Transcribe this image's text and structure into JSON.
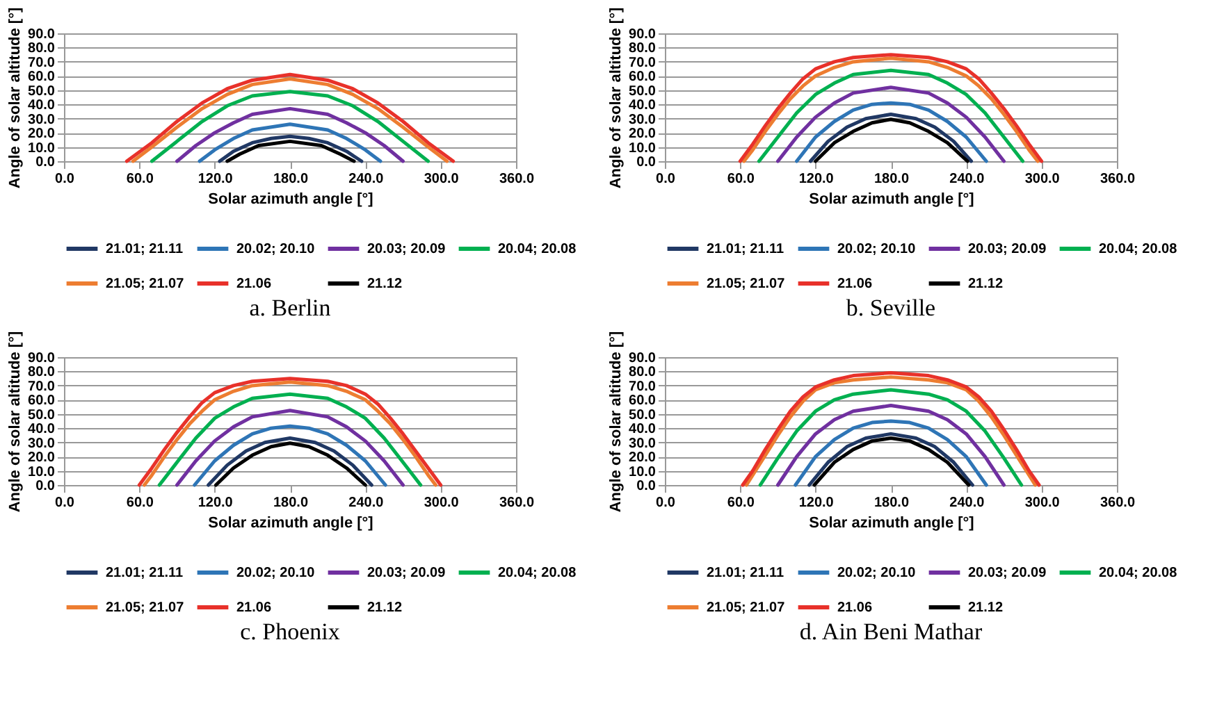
{
  "chart_data": [
    {
      "type": "line",
      "title": "a. Berlin",
      "xlabel": "Solar azimuth angle [°]",
      "ylabel": "Angle of solar altitude [°]",
      "xlim": [
        0,
        360
      ],
      "ylim": [
        0,
        90
      ],
      "xticks": [
        {
          "value": 0,
          "label": "0.0"
        },
        {
          "value": 60,
          "label": "60.0"
        },
        {
          "value": 120,
          "label": "120.0"
        },
        {
          "value": 180,
          "label": "180.0"
        },
        {
          "value": 240,
          "label": "240.0"
        },
        {
          "value": 300,
          "label": "300.0"
        },
        {
          "value": 360,
          "label": "360.0"
        }
      ],
      "yticks": [
        {
          "value": 0,
          "label": "0.0"
        },
        {
          "value": 10,
          "label": "10.0"
        },
        {
          "value": 20,
          "label": "20.0"
        },
        {
          "value": 30,
          "label": "30.0"
        },
        {
          "value": 40,
          "label": "40.0"
        },
        {
          "value": 50,
          "label": "50.0"
        },
        {
          "value": 60,
          "label": "60.0"
        },
        {
          "value": 70,
          "label": "70.0"
        },
        {
          "value": 80,
          "label": "80.0"
        },
        {
          "value": 90,
          "label": "90.0"
        }
      ],
      "grid": "y",
      "legend": "bottom",
      "series": [
        {
          "name": "21.01; 21.11",
          "color": "#203864",
          "x": [
            124,
            135,
            150,
            165,
            180,
            195,
            210,
            225,
            237
          ],
          "values": [
            0,
            7,
            13,
            16,
            17.5,
            16,
            13,
            7,
            0
          ]
        },
        {
          "name": "20.02; 20.10",
          "color": "#2e75b6",
          "x": [
            108,
            120,
            135,
            150,
            180,
            210,
            225,
            240,
            252
          ],
          "values": [
            0,
            8,
            16,
            22,
            26,
            22,
            16,
            8,
            0
          ]
        },
        {
          "name": "20.03; 20.09",
          "color": "#7030a0",
          "x": [
            90,
            105,
            120,
            135,
            150,
            180,
            210,
            225,
            240,
            255,
            270
          ],
          "values": [
            0,
            11,
            20,
            27,
            33,
            37,
            33,
            27,
            20,
            11,
            0
          ]
        },
        {
          "name": "20.04; 20.08",
          "color": "#00b050",
          "x": [
            70,
            90,
            110,
            130,
            150,
            180,
            210,
            230,
            250,
            270,
            290
          ],
          "values": [
            0,
            14,
            28,
            39,
            46,
            49,
            46,
            39,
            28,
            14,
            0
          ]
        },
        {
          "name": "21.05; 21.07",
          "color": "#ed7d31",
          "x": [
            55,
            70,
            90,
            110,
            130,
            150,
            180,
            210,
            230,
            250,
            270,
            290,
            305
          ],
          "values": [
            0,
            10,
            24,
            37,
            47,
            54,
            58,
            54,
            47,
            37,
            24,
            10,
            0
          ]
        },
        {
          "name": "21.06",
          "color": "#e8312a",
          "x": [
            50,
            70,
            90,
            110,
            130,
            150,
            180,
            210,
            230,
            250,
            270,
            290,
            310
          ],
          "values": [
            0,
            13,
            28,
            41,
            51,
            57,
            61,
            57,
            51,
            41,
            28,
            13,
            0
          ]
        },
        {
          "name": "21.12",
          "color": "#000000",
          "x": [
            130,
            140,
            155,
            180,
            205,
            220,
            231
          ],
          "values": [
            0,
            5,
            11,
            14,
            11,
            5,
            0
          ]
        }
      ]
    },
    {
      "type": "line",
      "title": "b. Seville",
      "xlabel": "Solar azimuth angle [°]",
      "ylabel": "Angle of solar altitude [°]",
      "xlim": [
        0,
        360
      ],
      "ylim": [
        0,
        90
      ],
      "xticks": [
        {
          "value": 0,
          "label": "0.0"
        },
        {
          "value": 60,
          "label": "60.0"
        },
        {
          "value": 120,
          "label": "120.0"
        },
        {
          "value": 180,
          "label": "180.0"
        },
        {
          "value": 240,
          "label": "240.0"
        },
        {
          "value": 300,
          "label": "300.0"
        },
        {
          "value": 360,
          "label": "360.0"
        }
      ],
      "yticks": [
        {
          "value": 0,
          "label": "0.0"
        },
        {
          "value": 10,
          "label": "10.0"
        },
        {
          "value": 20,
          "label": "20.0"
        },
        {
          "value": 30,
          "label": "30.0"
        },
        {
          "value": 40,
          "label": "40.0"
        },
        {
          "value": 50,
          "label": "50.0"
        },
        {
          "value": 60,
          "label": "60.0"
        },
        {
          "value": 70,
          "label": "70.0"
        },
        {
          "value": 80,
          "label": "80.0"
        },
        {
          "value": 90,
          "label": "90.0"
        }
      ],
      "grid": "y",
      "legend": "bottom",
      "series": [
        {
          "name": "21.01; 21.11",
          "color": "#203864",
          "x": [
            116,
            130,
            145,
            160,
            180,
            200,
            215,
            230,
            244
          ],
          "values": [
            0,
            14,
            24,
            30,
            33,
            30,
            24,
            14,
            0
          ]
        },
        {
          "name": "20.02; 20.10",
          "color": "#2e75b6",
          "x": [
            105,
            120,
            135,
            150,
            165,
            180,
            195,
            210,
            225,
            240,
            256
          ],
          "values": [
            0,
            17,
            28,
            36,
            40,
            41,
            40,
            36,
            28,
            17,
            0
          ]
        },
        {
          "name": "20.03; 20.09",
          "color": "#7030a0",
          "x": [
            90,
            105,
            120,
            135,
            150,
            180,
            210,
            225,
            240,
            255,
            270
          ],
          "values": [
            0,
            17,
            31,
            41,
            48,
            52,
            48,
            41,
            31,
            17,
            0
          ]
        },
        {
          "name": "20.04; 20.08",
          "color": "#00b050",
          "x": [
            75,
            90,
            105,
            120,
            135,
            150,
            180,
            210,
            225,
            240,
            255,
            270,
            285
          ],
          "values": [
            0,
            17,
            34,
            47,
            55,
            61,
            64,
            61,
            55,
            47,
            34,
            17,
            0
          ]
        },
        {
          "name": "21.05; 21.07",
          "color": "#ed7d31",
          "x": [
            63,
            70,
            80,
            90,
            100,
            110,
            120,
            135,
            150,
            180,
            210,
            225,
            240,
            250,
            260,
            270,
            280,
            290,
            297
          ],
          "values": [
            0,
            8,
            21,
            33,
            44,
            53,
            60,
            66,
            70,
            72.5,
            70,
            66,
            60,
            53,
            44,
            33,
            21,
            8,
            0
          ]
        },
        {
          "name": "21.06",
          "color": "#e8312a",
          "x": [
            60,
            70,
            80,
            90,
            100,
            110,
            120,
            135,
            150,
            180,
            210,
            225,
            240,
            250,
            260,
            270,
            280,
            290,
            300
          ],
          "values": [
            0,
            12,
            25,
            37,
            48,
            58,
            65,
            70,
            73,
            75,
            73,
            70,
            65,
            58,
            48,
            37,
            25,
            12,
            0
          ]
        },
        {
          "name": "21.12",
          "color": "#000000",
          "x": [
            120,
            135,
            150,
            165,
            180,
            195,
            210,
            225,
            241
          ],
          "values": [
            0,
            13,
            21,
            27,
            29.5,
            27,
            21,
            13,
            0
          ]
        }
      ]
    },
    {
      "type": "line",
      "title": "c. Phoenix",
      "xlabel": "Solar azimuth angle [°]",
      "ylabel": "Angle of solar altitude [°]",
      "xlim": [
        0,
        360
      ],
      "ylim": [
        0,
        90
      ],
      "xticks": [
        {
          "value": 0,
          "label": "0.0"
        },
        {
          "value": 60,
          "label": "60.0"
        },
        {
          "value": 120,
          "label": "120.0"
        },
        {
          "value": 180,
          "label": "180.0"
        },
        {
          "value": 240,
          "label": "240.0"
        },
        {
          "value": 300,
          "label": "300.0"
        },
        {
          "value": 360,
          "label": "360.0"
        }
      ],
      "yticks": [
        {
          "value": 0,
          "label": "0.0"
        },
        {
          "value": 10,
          "label": "10.0"
        },
        {
          "value": 20,
          "label": "20.0"
        },
        {
          "value": 30,
          "label": "30.0"
        },
        {
          "value": 40,
          "label": "40.0"
        },
        {
          "value": 50,
          "label": "50.0"
        },
        {
          "value": 60,
          "label": "60.0"
        },
        {
          "value": 70,
          "label": "70.0"
        },
        {
          "value": 80,
          "label": "80.0"
        },
        {
          "value": 90,
          "label": "90.0"
        }
      ],
      "grid": "y",
      "legend": "bottom",
      "series": [
        {
          "name": "21.01; 21.11",
          "color": "#203864",
          "x": [
            115,
            130,
            145,
            160,
            180,
            200,
            215,
            230,
            245
          ],
          "values": [
            0,
            14,
            24,
            30,
            33,
            30,
            24,
            14,
            0
          ]
        },
        {
          "name": "20.02; 20.10",
          "color": "#2e75b6",
          "x": [
            104,
            120,
            135,
            150,
            165,
            180,
            195,
            210,
            225,
            240,
            256
          ],
          "values": [
            0,
            17,
            28,
            36,
            40,
            41.5,
            40,
            36,
            28,
            17,
            0
          ]
        },
        {
          "name": "20.03; 20.09",
          "color": "#7030a0",
          "x": [
            90,
            105,
            120,
            135,
            150,
            180,
            210,
            225,
            240,
            255,
            270
          ],
          "values": [
            0,
            17,
            31,
            41,
            48,
            52.5,
            48,
            41,
            31,
            17,
            0
          ]
        },
        {
          "name": "20.04; 20.08",
          "color": "#00b050",
          "x": [
            76,
            90,
            105,
            120,
            135,
            150,
            180,
            210,
            225,
            240,
            255,
            270,
            284
          ],
          "values": [
            0,
            16,
            33,
            47,
            55,
            61,
            64,
            61,
            55,
            47,
            33,
            16,
            0
          ]
        },
        {
          "name": "21.05; 21.07",
          "color": "#ed7d31",
          "x": [
            64,
            70,
            80,
            90,
            100,
            110,
            120,
            135,
            150,
            180,
            210,
            225,
            240,
            250,
            260,
            270,
            280,
            290,
            296
          ],
          "values": [
            0,
            7,
            20,
            32,
            43,
            52,
            60,
            66,
            70,
            72.5,
            70,
            66,
            60,
            52,
            43,
            32,
            20,
            7,
            0
          ]
        },
        {
          "name": "21.06",
          "color": "#e8312a",
          "x": [
            60,
            70,
            80,
            90,
            100,
            110,
            120,
            135,
            150,
            180,
            210,
            225,
            240,
            250,
            260,
            270,
            280,
            290,
            300
          ],
          "values": [
            0,
            12,
            25,
            37,
            48,
            58,
            65,
            70,
            73,
            75,
            73,
            70,
            64,
            57,
            47,
            36,
            24,
            12,
            0
          ]
        },
        {
          "name": "21.12",
          "color": "#000000",
          "x": [
            121,
            135,
            150,
            165,
            180,
            195,
            210,
            225,
            240
          ],
          "values": [
            0,
            12,
            21,
            27,
            29.5,
            27,
            21,
            12,
            0
          ]
        }
      ]
    },
    {
      "type": "line",
      "title": "d. Ain Beni Mathar",
      "xlabel": "Solar azimuth angle [°]",
      "ylabel": "Angle of solar altitude [°]",
      "xlim": [
        0,
        360
      ],
      "ylim": [
        0,
        90
      ],
      "xticks": [
        {
          "value": 0,
          "label": "0.0"
        },
        {
          "value": 60,
          "label": "60.0"
        },
        {
          "value": 120,
          "label": "120.0"
        },
        {
          "value": 180,
          "label": "180.0"
        },
        {
          "value": 240,
          "label": "240.0"
        },
        {
          "value": 300,
          "label": "300.0"
        },
        {
          "value": 360,
          "label": "360.0"
        }
      ],
      "yticks": [
        {
          "value": 0,
          "label": "0.0"
        },
        {
          "value": 10,
          "label": "10.0"
        },
        {
          "value": 20,
          "label": "20.0"
        },
        {
          "value": 30,
          "label": "30.0"
        },
        {
          "value": 40,
          "label": "40.0"
        },
        {
          "value": 50,
          "label": "50.0"
        },
        {
          "value": 60,
          "label": "60.0"
        },
        {
          "value": 70,
          "label": "70.0"
        },
        {
          "value": 80,
          "label": "80.0"
        },
        {
          "value": 90,
          "label": "90.0"
        }
      ],
      "grid": "y",
      "legend": "bottom",
      "series": [
        {
          "name": "21.01; 21.11",
          "color": "#203864",
          "x": [
            115,
            130,
            145,
            160,
            180,
            200,
            215,
            230,
            245
          ],
          "values": [
            0,
            16,
            27,
            33,
            36,
            33,
            27,
            16,
            0
          ]
        },
        {
          "name": "20.02; 20.10",
          "color": "#2e75b6",
          "x": [
            104,
            120,
            135,
            150,
            165,
            180,
            195,
            210,
            225,
            240,
            256
          ],
          "values": [
            0,
            20,
            32,
            40,
            44,
            45,
            44,
            40,
            32,
            20,
            0
          ]
        },
        {
          "name": "20.03; 20.09",
          "color": "#7030a0",
          "x": [
            90,
            105,
            120,
            135,
            150,
            180,
            210,
            225,
            240,
            255,
            270
          ],
          "values": [
            0,
            20,
            36,
            46,
            52,
            56,
            52,
            46,
            36,
            20,
            0
          ]
        },
        {
          "name": "20.04; 20.08",
          "color": "#00b050",
          "x": [
            76,
            90,
            105,
            120,
            135,
            150,
            180,
            210,
            225,
            240,
            255,
            270,
            284
          ],
          "values": [
            0,
            19,
            38,
            52,
            60,
            64,
            67,
            64,
            60,
            52,
            38,
            19,
            0
          ]
        },
        {
          "name": "21.05; 21.07",
          "color": "#ed7d31",
          "x": [
            65,
            70,
            80,
            90,
            100,
            110,
            120,
            135,
            150,
            180,
            210,
            225,
            240,
            250,
            260,
            270,
            280,
            290,
            295
          ],
          "values": [
            0,
            7,
            21,
            35,
            48,
            59,
            67,
            72,
            74,
            76,
            74,
            72,
            67,
            59,
            48,
            35,
            21,
            7,
            0
          ]
        },
        {
          "name": "21.06",
          "color": "#e8312a",
          "x": [
            62,
            70,
            80,
            90,
            100,
            110,
            120,
            135,
            150,
            180,
            210,
            225,
            240,
            250,
            260,
            270,
            280,
            290,
            298
          ],
          "values": [
            0,
            10,
            25,
            39,
            52,
            62,
            69,
            74,
            77,
            79,
            77,
            74,
            69,
            62,
            52,
            39,
            25,
            10,
            0
          ]
        },
        {
          "name": "21.12",
          "color": "#000000",
          "x": [
            119,
            135,
            150,
            165,
            180,
            195,
            210,
            225,
            242
          ],
          "values": [
            0,
            16,
            25,
            31,
            33,
            31,
            25,
            16,
            0
          ]
        }
      ]
    }
  ]
}
